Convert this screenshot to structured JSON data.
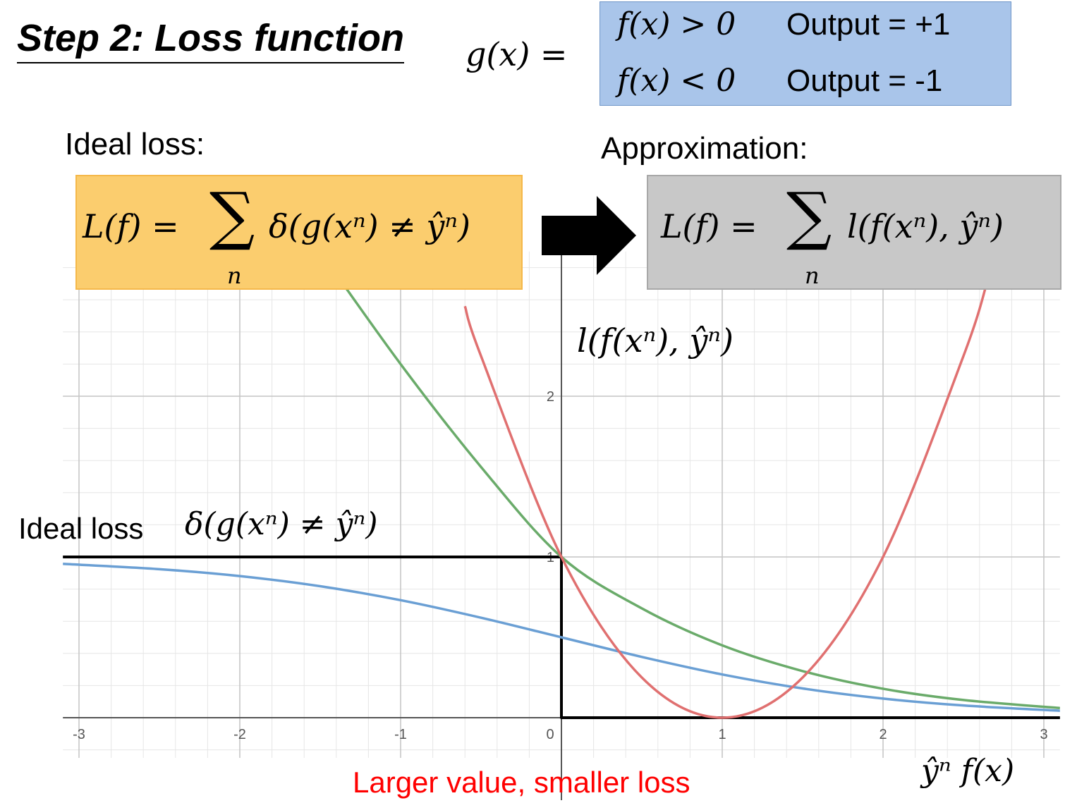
{
  "title": "Step 2: Loss function",
  "g_def": {
    "lhs": "g(x) =",
    "rows": [
      {
        "condition": "f(x) > 0",
        "output": "Output = +1"
      },
      {
        "condition": "f(x) < 0",
        "output": "Output = -1"
      }
    ],
    "box_color": "#a9c5ea"
  },
  "ideal_label": "Ideal loss:",
  "approx_label": "Approximation:",
  "ideal_formula": {
    "lhs": "L(f) =",
    "sigma": "∑",
    "sub": "n",
    "body": "δ(g(xⁿ) ≠ ŷⁿ)",
    "box_color": "#fbcd6e"
  },
  "approx_formula": {
    "lhs": "L(f) =",
    "sigma": "∑",
    "sub": "n",
    "body": "l(f(xⁿ), ŷⁿ)",
    "box_color": "#c8c8c8"
  },
  "arrow": "right-arrow",
  "curve_label": "l(f(xⁿ), ŷⁿ)",
  "ideal_loss_text": "Ideal loss",
  "ideal_loss_formula": "δ(g(xⁿ) ≠ ŷⁿ)",
  "x_axis_label": "ŷⁿ f(x)",
  "bottom_note": "Larger value, smaller loss",
  "chart_data": {
    "type": "line",
    "xlim": [
      -3.1,
      3.1
    ],
    "ylim": [
      -0.25,
      2.9
    ],
    "x_ticks": [
      -3,
      -2,
      -1,
      0,
      1,
      2,
      3
    ],
    "x_tick_labels": [
      "-3",
      "-2",
      "-1",
      "0",
      "1",
      "2",
      "3"
    ],
    "y_ticks": [
      1,
      2
    ],
    "y_tick_labels": [
      "1",
      "2"
    ],
    "grid": true,
    "series": [
      {
        "color": "#000000",
        "type": "step",
        "points": [
          [
            -3.1,
            1
          ],
          [
            0,
            1
          ],
          [
            0,
            0
          ],
          [
            3.1,
            0
          ]
        ]
      },
      {
        "color": "#6a9fd4",
        "points": [
          [
            -3.1,
            0.957
          ],
          [
            -2.5,
            0.924
          ],
          [
            -2,
            0.881
          ],
          [
            -1.5,
            0.818
          ],
          [
            -1,
            0.731
          ],
          [
            -0.5,
            0.622
          ],
          [
            0,
            0.5
          ],
          [
            0.5,
            0.378
          ],
          [
            1,
            0.269
          ],
          [
            1.5,
            0.182
          ],
          [
            2,
            0.119
          ],
          [
            2.5,
            0.076
          ],
          [
            3.1,
            0.043
          ]
        ]
      },
      {
        "color": "#6aab6a",
        "points": [
          [
            -1.6,
            3.04
          ],
          [
            -1.5,
            2.9
          ],
          [
            -1,
            2.2
          ],
          [
            -0.5,
            1.56
          ],
          [
            0,
            1.0
          ],
          [
            0.5,
            0.68
          ],
          [
            1,
            0.45
          ],
          [
            1.5,
            0.29
          ],
          [
            2,
            0.18
          ],
          [
            2.5,
            0.11
          ],
          [
            3.1,
            0.06
          ]
        ]
      },
      {
        "color": "#e07070",
        "points": [
          [
            -0.6,
            2.56
          ],
          [
            -0.5,
            2.25
          ],
          [
            0,
            1.0
          ],
          [
            0.5,
            0.25
          ],
          [
            1,
            0
          ],
          [
            1.5,
            0.25
          ],
          [
            2,
            1.0
          ],
          [
            2.5,
            2.25
          ],
          [
            2.65,
            2.72
          ]
        ]
      }
    ]
  }
}
